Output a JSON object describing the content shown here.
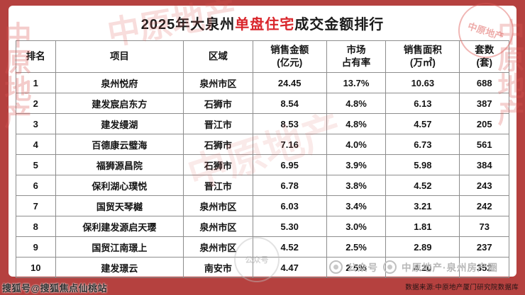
{
  "colors": {
    "frame": "#b5413f",
    "card": "#ffffff",
    "title_highlight": "#d9252b",
    "watermark_red": "#dd5a56",
    "table_border": "#8d8d8d"
  },
  "title": {
    "prefix": "2025年大泉州",
    "highlight": "单盘住宅",
    "suffix": "成交金额排行"
  },
  "table": {
    "headers": [
      "排名",
      "项目",
      "区域",
      "销售金额\n(亿元)",
      "市场\n占有率",
      "销售面积\n(万㎡)",
      "套数\n(套)"
    ]
  },
  "chart_data": {
    "type": "table",
    "title": "2025年大泉州单盘住宅成交金额排行",
    "columns": [
      "排名",
      "项目",
      "区域",
      "销售金额(亿元)",
      "市场占有率",
      "销售面积(万㎡)",
      "套数(套)"
    ],
    "rows": [
      [
        "1",
        "泉州悦府",
        "泉州市区",
        "24.45",
        "13.7%",
        "10.63",
        "688"
      ],
      [
        "2",
        "建发宸启东方",
        "石狮市",
        "8.54",
        "4.8%",
        "6.13",
        "387"
      ],
      [
        "3",
        "建发缦湖",
        "晋江市",
        "8.53",
        "4.8%",
        "4.57",
        "205"
      ],
      [
        "4",
        "百德康云璧海",
        "石狮市",
        "7.16",
        "4.0%",
        "6.73",
        "561"
      ],
      [
        "5",
        "福狮源昌院",
        "石狮市",
        "6.95",
        "3.9%",
        "5.98",
        "384"
      ],
      [
        "6",
        "保利湖心璞悦",
        "晋江市",
        "6.78",
        "3.8%",
        "4.52",
        "243"
      ],
      [
        "7",
        "国贸天琴樾",
        "泉州市区",
        "6.03",
        "3.4%",
        "3.21",
        "242"
      ],
      [
        "8",
        "保利建发源启天璎",
        "泉州市区",
        "5.30",
        "3.0%",
        "1.81",
        "73"
      ],
      [
        "9",
        "国贸江南璟上",
        "泉州市区",
        "4.52",
        "2.5%",
        "2.89",
        "237"
      ],
      [
        "10",
        "建发璟云",
        "南安市",
        "4.47",
        "2.5%",
        "4.20",
        "352"
      ]
    ]
  },
  "watermarks": {
    "diagonal": "中原地产",
    "official_account": "公众号",
    "brand": "中原地产·泉州房产圈",
    "sohu": "搜狐号@搜狐焦点仙桃站",
    "source": "数据来源:中原地产厦门研究院数据库"
  }
}
